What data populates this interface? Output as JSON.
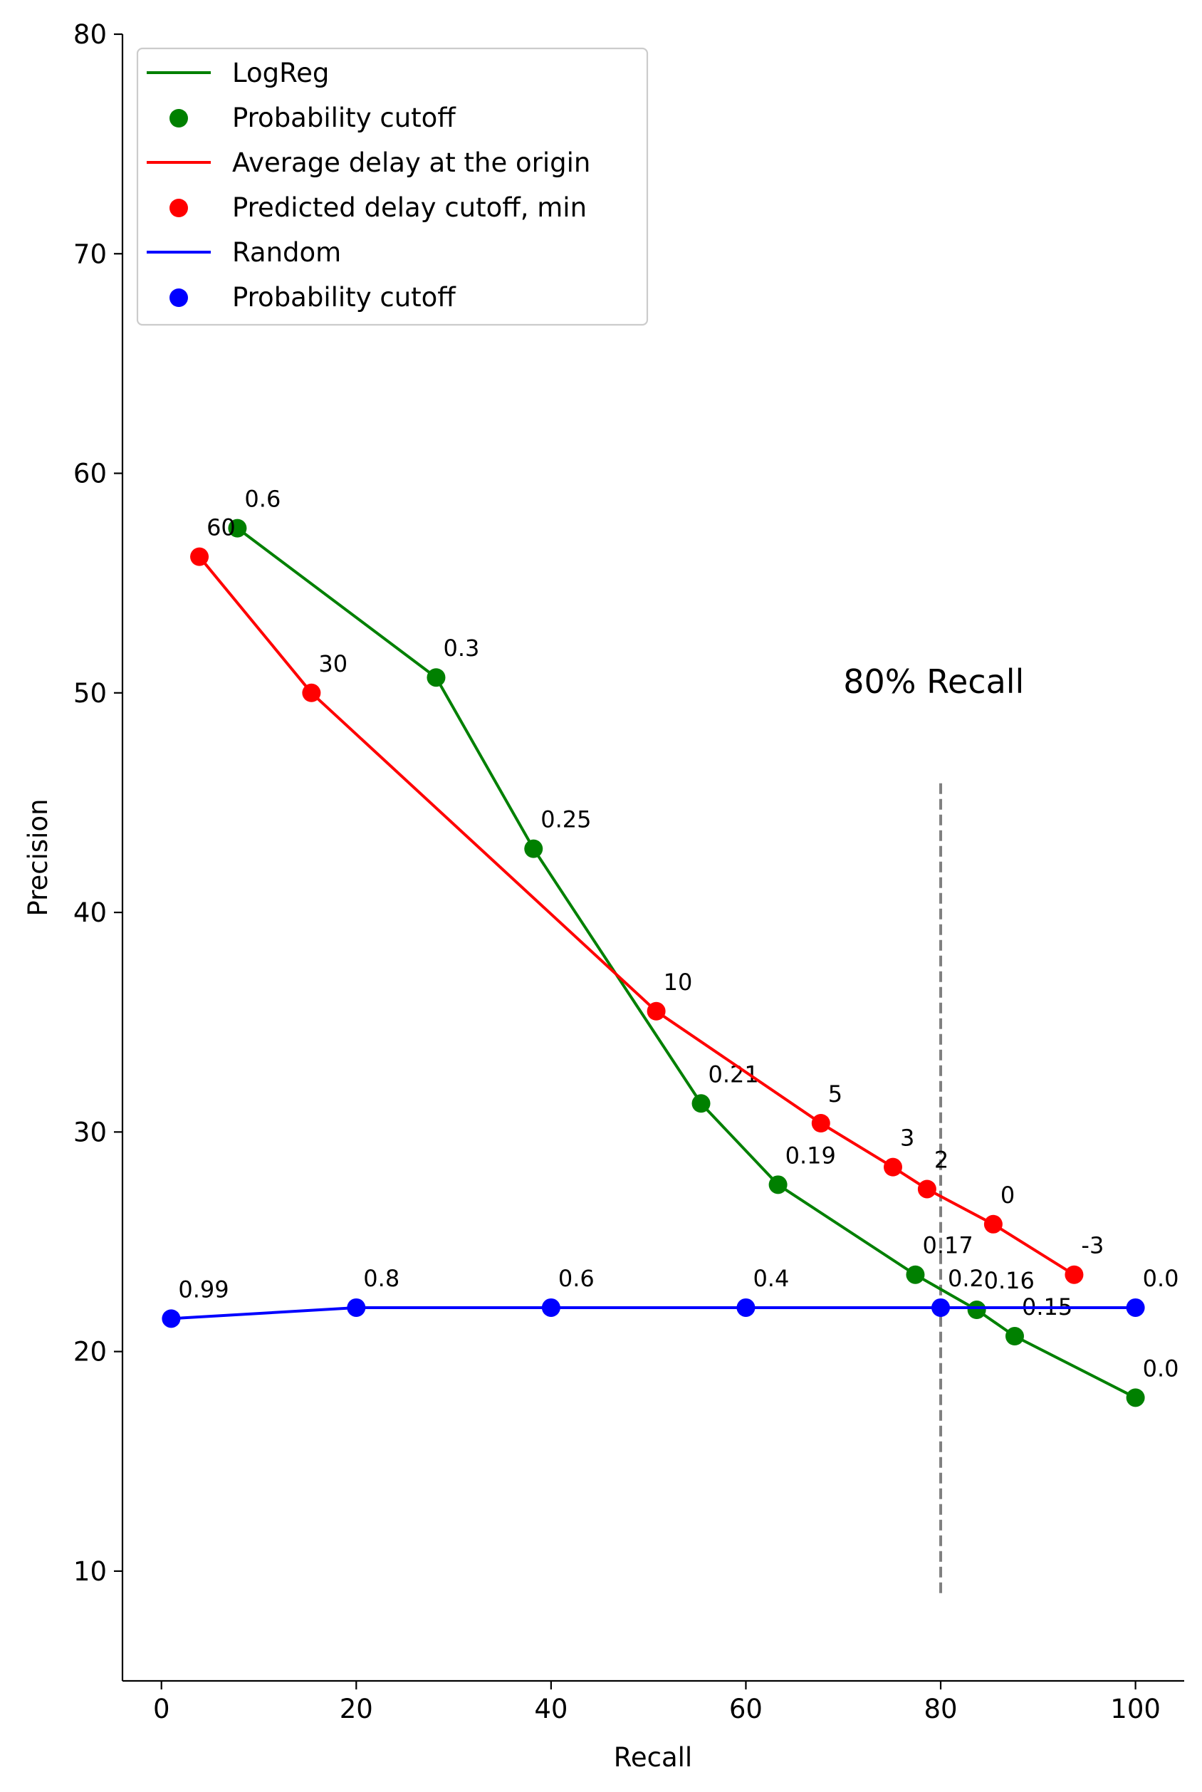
{
  "chart_data": {
    "type": "line",
    "xlabel": "Recall",
    "ylabel": "Precision",
    "xlim": [
      -4,
      105
    ],
    "ylim": [
      5,
      80
    ],
    "xticks": [
      0,
      20,
      40,
      60,
      80,
      100
    ],
    "yticks": [
      10,
      20,
      30,
      40,
      50,
      60,
      70,
      80
    ],
    "grid": false,
    "legend_position": "top-left",
    "series": [
      {
        "name": "LogReg",
        "points_name": "Probability cutoff",
        "color": "#008000",
        "x": [
          7.8,
          28.2,
          38.2,
          55.4,
          63.3,
          77.4,
          83.7,
          87.6,
          100
        ],
        "y": [
          57.5,
          50.7,
          42.9,
          31.3,
          27.6,
          23.5,
          21.9,
          20.7,
          17.9
        ],
        "labels": [
          "0.6",
          "0.3",
          "0.25",
          "0.21",
          "0.19",
          "0.17",
          "0.16",
          "0.15",
          "0.0"
        ]
      },
      {
        "name": "Average delay at the origin",
        "points_name": "Predicted delay cutoff, min",
        "color": "#ff0000",
        "x": [
          3.9,
          15.4,
          50.8,
          67.7,
          75.1,
          78.6,
          85.4,
          93.7
        ],
        "y": [
          56.2,
          50.0,
          35.5,
          30.4,
          28.4,
          27.4,
          25.8,
          23.5
        ],
        "labels": [
          "60",
          "30",
          "10",
          "5",
          "3",
          "2",
          "0",
          "-3"
        ]
      },
      {
        "name": "Random",
        "points_name": "Probability cutoff",
        "color": "#0000ff",
        "x": [
          1,
          20,
          40,
          60,
          80,
          100
        ],
        "y": [
          21.5,
          22.0,
          22.0,
          22.0,
          22.0,
          22.0
        ],
        "labels": [
          "0.99",
          "0.8",
          "0.6",
          "0.4",
          "0.2",
          "0.0"
        ]
      }
    ],
    "reference_line": {
      "x": 80,
      "y_range": [
        9,
        46
      ],
      "color": "#808080",
      "label": "80% Recall",
      "label_x": 70,
      "label_y": 50
    }
  }
}
